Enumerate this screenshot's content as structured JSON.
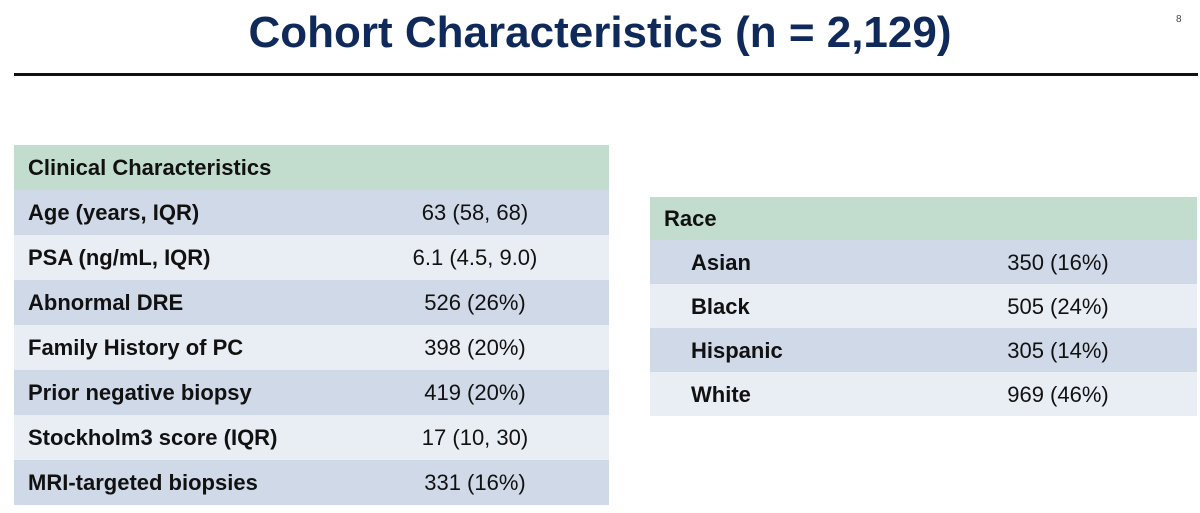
{
  "header": {
    "title": "Cohort Characteristics (n = 2,129)",
    "page_number": "8"
  },
  "tables": [
    {
      "title": "Clinical Characteristics",
      "rows": [
        [
          "Age (years, IQR)",
          "63 (58, 68)"
        ],
        [
          "PSA (ng/mL, IQR)",
          "6.1 (4.5, 9.0)"
        ],
        [
          "Abnormal DRE",
          "526 (26%)"
        ],
        [
          "Family History of PC",
          "398 (20%)"
        ],
        [
          "Prior negative biopsy",
          "419 (20%)"
        ],
        [
          "Stockholm3 score (IQR)",
          "17 (10, 30)"
        ],
        [
          "MRI-targeted biopsies",
          "331 (16%)"
        ]
      ]
    },
    {
      "title": "Race",
      "rows": [
        [
          "Asian",
          "350 (16%)"
        ],
        [
          "Black",
          "505 (24%)"
        ],
        [
          "Hispanic",
          "305 (14%)"
        ],
        [
          "White",
          "969 (46%)"
        ]
      ]
    }
  ]
}
